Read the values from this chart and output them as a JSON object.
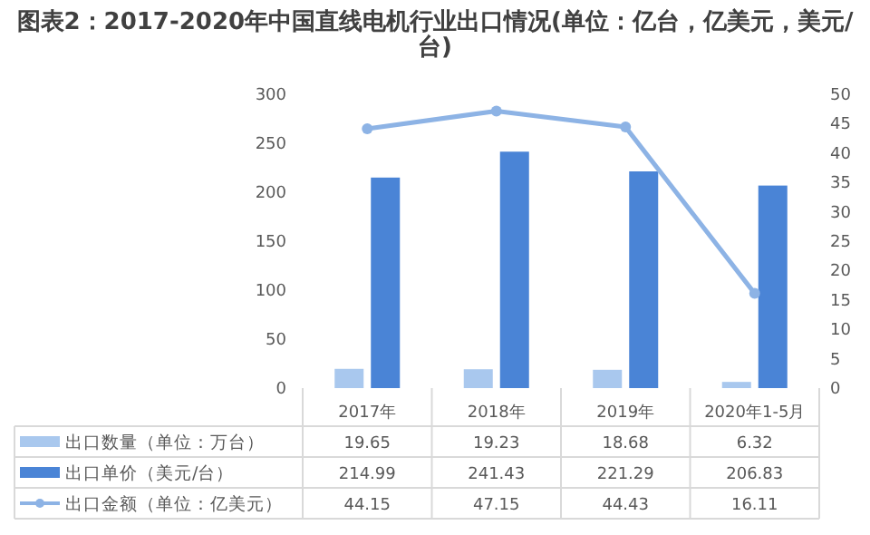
{
  "chart_data": {
    "type": "bar",
    "title": "图表2：2017-2020年中国直线电机行业出口情况(单位：亿台，亿美元，美元/台)",
    "categories": [
      "2017年",
      "2018年",
      "2019年",
      "2020年1-5月"
    ],
    "series": [
      {
        "name": "出口数量（单位：万台）",
        "color": "#a9c8ee",
        "values": [
          19.65,
          19.23,
          18.68,
          6.32
        ]
      },
      {
        "name": "出口单价（美元/台）",
        "color": "#4a84d6",
        "values": [
          214.99,
          241.43,
          221.29,
          206.83
        ]
      },
      {
        "name": "出口金额（单位：亿美元）",
        "color": "#8db3e5",
        "type": "line",
        "axis": "y2",
        "marker": "circle",
        "values": [
          44.15,
          47.15,
          44.43,
          16.11
        ]
      }
    ],
    "ylim": [
      0,
      300
    ],
    "yticks": [
      0,
      50,
      100,
      150,
      200,
      250,
      300
    ],
    "y2lim": [
      0,
      50
    ],
    "y2ticks": [
      0,
      5,
      10,
      15,
      20,
      25,
      30,
      35,
      40,
      45,
      50
    ],
    "data_labels": true,
    "legend": "bottom"
  }
}
